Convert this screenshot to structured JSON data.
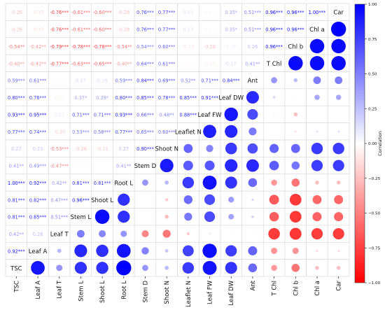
{
  "chart_data": {
    "type": "heatmap",
    "title": "",
    "variables": [
      "TSC",
      "Leaf A",
      "Leaf T",
      "Stem L",
      "Shoot L",
      "Root L",
      "Stem D",
      "Shoot N",
      "Leaflet N",
      "Leaf FW",
      "Leaf DW",
      "Ant",
      "T Chl",
      "Chl b",
      "Chl a",
      "Car"
    ],
    "upper_triangle": "circles sized and colored by correlation",
    "diagonal": "variable names",
    "matrix": [
      [
        1.0,
        0.92,
        0.42,
        0.81,
        0.81,
        1.0,
        0.41,
        0.27,
        0.77,
        0.93,
        0.8,
        0.59,
        -0.4,
        -0.54,
        -0.26,
        -0.26
      ],
      [
        0.92,
        1.0,
        0.28,
        0.85,
        0.82,
        0.92,
        0.49,
        0.23,
        0.74,
        0.95,
        0.76,
        0.61,
        -0.42,
        -0.42,
        -0.15,
        -0.15
      ],
      [
        0.42,
        0.28,
        1.0,
        0.51,
        0.47,
        0.42,
        -0.47,
        -0.53,
        -0.2,
        0.11,
        -0.07,
        -0.04,
        -0.77,
        -0.79,
        -0.76,
        -0.76
      ],
      [
        0.81,
        0.85,
        0.51,
        1.0,
        0.96,
        0.81,
        -0.02,
        -0.26,
        0.53,
        0.71,
        0.37,
        0.17,
        -0.63,
        -0.78,
        -0.61,
        -0.61
      ],
      [
        0.81,
        0.82,
        0.47,
        0.96,
        1.0,
        0.81,
        -0.01,
        -0.21,
        0.58,
        0.71,
        0.39,
        0.16,
        -0.65,
        -0.78,
        -0.6,
        -0.6
      ],
      [
        1.0,
        0.92,
        0.42,
        0.81,
        0.81,
        1.0,
        0.41,
        0.27,
        0.77,
        0.93,
        0.8,
        0.59,
        -0.4,
        -0.54,
        -0.26,
        -0.26
      ],
      [
        0.41,
        0.49,
        -0.47,
        -0.02,
        -0.01,
        0.41,
        1.0,
        0.9,
        0.65,
        0.66,
        0.85,
        0.84,
        0.64,
        0.54,
        0.76,
        0.76
      ],
      [
        0.27,
        0.23,
        -0.53,
        -0.26,
        -0.21,
        0.27,
        0.9,
        1.0,
        0.6,
        0.48,
        0.78,
        0.69,
        0.61,
        0.6,
        0.77,
        0.77
      ],
      [
        0.77,
        0.74,
        -0.2,
        0.53,
        0.58,
        0.77,
        0.65,
        0.6,
        1.0,
        0.88,
        0.85,
        0.52,
        -0.03,
        -0.13,
        0.13,
        0.13
      ],
      [
        0.93,
        0.95,
        0.11,
        0.71,
        0.71,
        0.93,
        0.66,
        0.48,
        0.88,
        1.0,
        0.91,
        0.71,
        -0.1,
        -0.26,
        0.03,
        0.03
      ],
      [
        0.8,
        0.76,
        -0.07,
        0.37,
        0.39,
        0.8,
        0.85,
        0.78,
        0.85,
        0.91,
        1.0,
        0.84,
        0.17,
        0.06,
        0.35,
        0.35
      ],
      [
        0.59,
        0.61,
        -0.04,
        0.17,
        0.16,
        0.59,
        0.84,
        0.69,
        0.52,
        0.71,
        0.84,
        1.0,
        0.41,
        0.26,
        0.51,
        0.51
      ],
      [
        -0.4,
        -0.42,
        -0.77,
        -0.63,
        -0.65,
        -0.4,
        0.64,
        0.61,
        -0.03,
        -0.1,
        0.17,
        0.41,
        1.0,
        0.96,
        0.96,
        0.96
      ],
      [
        -0.54,
        -0.42,
        -0.79,
        -0.78,
        -0.78,
        -0.54,
        0.54,
        0.6,
        -0.13,
        -0.26,
        0.06,
        0.26,
        0.96,
        1.0,
        0.96,
        0.96
      ],
      [
        -0.26,
        -0.15,
        -0.76,
        -0.61,
        -0.6,
        -0.26,
        0.76,
        0.77,
        0.13,
        0.03,
        0.35,
        0.51,
        0.96,
        0.96,
        1.0,
        1.0
      ],
      [
        -0.26,
        -0.15,
        -0.76,
        -0.61,
        -0.6,
        -0.26,
        0.76,
        0.77,
        0.13,
        0.03,
        0.35,
        0.51,
        0.96,
        0.96,
        1.0,
        1.0
      ]
    ],
    "significance": [
      [
        "",
        "***",
        "**",
        "***",
        "***",
        "***",
        "**",
        "",
        "***",
        "***",
        "***",
        "***",
        "**",
        "**",
        "",
        ""
      ],
      [
        "***",
        "",
        "",
        "***",
        "***",
        "***",
        "***",
        "",
        "***",
        "***",
        "***",
        "***",
        "**",
        "**",
        "",
        ""
      ],
      [
        "**",
        "",
        "",
        "***",
        "***",
        "**",
        "***",
        "***",
        "",
        "",
        "",
        "",
        "***",
        "***",
        "***",
        "***"
      ],
      [
        "***",
        "***",
        "***",
        "",
        "***",
        "***",
        "",
        "",
        "***",
        "***",
        "*",
        "",
        "***",
        "***",
        "***",
        "***"
      ],
      [
        "***",
        "***",
        "***",
        "***",
        "",
        "***",
        "",
        "",
        "***",
        "***",
        "*",
        "",
        "***",
        "***",
        "***",
        "***"
      ],
      [
        "***",
        "***",
        "**",
        "***",
        "***",
        "",
        "**",
        "",
        "***",
        "***",
        "***",
        "***",
        "**",
        "**",
        "",
        ""
      ],
      [
        "**",
        "***",
        "***",
        "",
        "",
        "**",
        "",
        "***",
        "***",
        "***",
        "***",
        "***",
        "***",
        "***",
        "***",
        "***"
      ],
      [
        "",
        "",
        "***",
        "",
        "",
        "",
        "***",
        "",
        "***",
        "**",
        "***",
        "***",
        "***",
        "***",
        "***",
        "***"
      ],
      [
        "***",
        "***",
        "",
        "***",
        "***",
        "***",
        "***",
        "***",
        "",
        "***",
        "***",
        "**",
        "",
        "",
        "",
        ""
      ],
      [
        "***",
        "***",
        "",
        "***",
        "***",
        "***",
        "***",
        "**",
        "***",
        "",
        "***",
        "***",
        "",
        "",
        "",
        ""
      ],
      [
        "***",
        "***",
        "",
        "*",
        "*",
        "***",
        "***",
        "***",
        "***",
        "***",
        "",
        "***",
        "",
        "",
        "*",
        "*"
      ],
      [
        "***",
        "***",
        "",
        "",
        "",
        "***",
        "***",
        "***",
        "**",
        "***",
        "***",
        "",
        "**",
        "",
        "***",
        "***"
      ],
      [
        "**",
        "**",
        "***",
        "***",
        "***",
        "**",
        "***",
        "***",
        "",
        "",
        "",
        "**",
        "",
        "***",
        "***",
        "***"
      ],
      [
        "**",
        "**",
        "***",
        "***",
        "***",
        "**",
        "***",
        "***",
        "",
        "",
        "",
        "",
        "***",
        "",
        "***",
        "***"
      ],
      [
        "",
        "",
        "***",
        "***",
        "***",
        "",
        "***",
        "***",
        "",
        "",
        "*",
        "***",
        "***",
        "***",
        "",
        "***"
      ],
      [
        "",
        "",
        "***",
        "***",
        "***",
        "",
        "***",
        "***",
        "",
        "",
        "*",
        "***",
        "***",
        "***",
        "***",
        ""
      ]
    ],
    "colorbar": {
      "label": "Correlation",
      "range": [
        -1.0,
        1.0
      ],
      "ticks": [
        1.0,
        0.75,
        0.5,
        0.25,
        0.0,
        -0.25,
        -0.5,
        -0.75,
        -1.0
      ],
      "tick_labels": [
        "1.00",
        "0.75",
        "0.50",
        "0.25",
        "0.00",
        "−0.25",
        "−0.50",
        "−0.75",
        "−1.00"
      ],
      "colors": {
        "negative": "#ff0000",
        "zero": "#ffffff",
        "positive": "#0000ff"
      }
    }
  }
}
